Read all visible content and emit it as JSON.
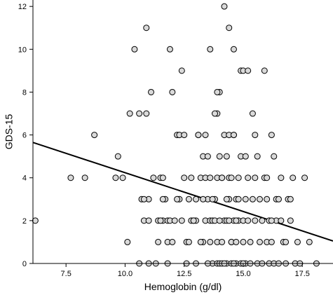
{
  "chart_data": {
    "type": "scatter",
    "xlabel": "Hemoglobin (g/dl)",
    "ylabel": "GDS-15",
    "xlim": [
      6.1,
      18.8
    ],
    "ylim": [
      0,
      12.3
    ],
    "x_ticks": [
      "7.5",
      "10.0",
      "12.5",
      "15.0",
      "17.5"
    ],
    "y_ticks": [
      "0",
      "2",
      "4",
      "6",
      "8",
      "10",
      "12"
    ],
    "grid": false,
    "marker": "open-circle",
    "marker_fill": "#d9d9d9",
    "marker_stroke": "#000000",
    "fit_line": {
      "x": [
        6.1,
        18.8
      ],
      "y": [
        5.65,
        1.05
      ],
      "color": "#000000"
    },
    "points": [
      [
        6.2,
        2
      ],
      [
        7.7,
        4
      ],
      [
        8.3,
        4
      ],
      [
        8.7,
        6
      ],
      [
        9.6,
        4
      ],
      [
        9.7,
        5
      ],
      [
        9.9,
        4
      ],
      [
        10.1,
        1
      ],
      [
        10.2,
        7
      ],
      [
        10.4,
        10
      ],
      [
        10.6,
        7
      ],
      [
        10.7,
        3
      ],
      [
        10.8,
        2
      ],
      [
        10.9,
        7
      ],
      [
        10.9,
        11
      ],
      [
        11.0,
        3
      ],
      [
        11.0,
        0
      ],
      [
        11.1,
        8
      ],
      [
        11.3,
        0
      ],
      [
        11.4,
        2
      ],
      [
        11.5,
        4
      ],
      [
        11.6,
        2
      ],
      [
        11.6,
        4
      ],
      [
        11.7,
        3
      ],
      [
        11.8,
        2
      ],
      [
        11.8,
        1
      ],
      [
        11.9,
        10
      ],
      [
        11.9,
        2
      ],
      [
        12.0,
        8
      ],
      [
        12.1,
        2
      ],
      [
        12.2,
        6
      ],
      [
        12.3,
        3
      ],
      [
        12.3,
        6
      ],
      [
        12.4,
        9
      ],
      [
        12.5,
        6
      ],
      [
        12.6,
        1
      ],
      [
        12.7,
        1
      ],
      [
        12.8,
        2
      ],
      [
        12.9,
        2
      ],
      [
        13.0,
        3
      ],
      [
        13.1,
        6
      ],
      [
        13.1,
        6
      ],
      [
        13.0,
        2
      ],
      [
        13.2,
        4
      ],
      [
        13.3,
        1
      ],
      [
        13.4,
        2
      ],
      [
        13.5,
        3
      ],
      [
        13.6,
        2
      ],
      [
        13.7,
        0
      ],
      [
        13.7,
        2
      ],
      [
        13.8,
        3
      ],
      [
        13.9,
        0
      ],
      [
        13.9,
        4
      ],
      [
        14.0,
        0
      ],
      [
        13.9,
        7
      ],
      [
        14.0,
        8
      ],
      [
        14.1,
        4
      ],
      [
        14.1,
        0
      ],
      [
        14.2,
        2
      ],
      [
        14.2,
        6
      ],
      [
        14.3,
        2
      ],
      [
        14.3,
        0
      ],
      [
        14.4,
        3
      ],
      [
        14.4,
        4
      ],
      [
        14.5,
        1
      ],
      [
        14.5,
        0
      ],
      [
        14.6,
        2
      ],
      [
        14.6,
        6
      ],
      [
        14.7,
        0
      ],
      [
        14.7,
        3
      ],
      [
        14.8,
        2
      ],
      [
        14.8,
        4
      ],
      [
        14.9,
        0
      ],
      [
        14.9,
        5
      ],
      [
        15.0,
        2
      ],
      [
        15.0,
        1
      ],
      [
        15.1,
        3
      ],
      [
        15.1,
        0
      ],
      [
        15.2,
        2
      ],
      [
        15.2,
        4
      ],
      [
        15.3,
        1
      ],
      [
        15.3,
        0
      ],
      [
        15.4,
        7
      ],
      [
        15.4,
        3
      ],
      [
        15.5,
        4
      ],
      [
        15.5,
        2
      ],
      [
        15.6,
        0
      ],
      [
        15.6,
        5
      ],
      [
        15.7,
        1
      ],
      [
        15.7,
        3
      ],
      [
        15.8,
        2
      ],
      [
        15.8,
        0
      ],
      [
        15.9,
        4
      ],
      [
        15.9,
        9
      ],
      [
        16.0,
        3
      ],
      [
        16.0,
        1
      ],
      [
        16.1,
        2
      ],
      [
        16.1,
        0
      ],
      [
        16.2,
        6
      ],
      [
        16.2,
        1
      ],
      [
        16.3,
        5
      ],
      [
        16.3,
        0
      ],
      [
        16.4,
        3
      ],
      [
        16.4,
        2
      ],
      [
        16.5,
        0
      ],
      [
        16.6,
        4
      ],
      [
        16.7,
        1
      ],
      [
        16.8,
        1
      ],
      [
        16.9,
        3
      ],
      [
        17.0,
        2
      ],
      [
        17.1,
        4
      ],
      [
        17.2,
        0
      ],
      [
        17.3,
        1
      ],
      [
        17.4,
        0
      ],
      [
        17.0,
        3
      ],
      [
        16.6,
        2
      ],
      [
        16.8,
        0
      ],
      [
        17.6,
        4
      ],
      [
        17.8,
        1
      ],
      [
        18.1,
        0
      ],
      [
        14.2,
        12
      ],
      [
        14.4,
        11
      ],
      [
        14.6,
        10
      ],
      [
        14.9,
        9
      ],
      [
        15.0,
        9
      ],
      [
        15.2,
        9
      ],
      [
        15.5,
        6
      ],
      [
        16.0,
        4
      ],
      [
        16.2,
        2
      ],
      [
        16.5,
        3
      ],
      [
        13.6,
        10
      ],
      [
        13.8,
        7
      ],
      [
        13.9,
        8
      ],
      [
        14.0,
        5
      ],
      [
        14.1,
        4
      ],
      [
        14.3,
        5
      ],
      [
        14.5,
        1
      ],
      [
        14.7,
        1
      ],
      [
        14.8,
        3
      ],
      [
        15.1,
        5
      ],
      [
        12.7,
        3
      ],
      [
        12.8,
        4
      ],
      [
        12.9,
        2
      ],
      [
        13.0,
        0
      ],
      [
        13.2,
        1
      ],
      [
        13.3,
        3
      ],
      [
        13.4,
        4
      ],
      [
        13.5,
        0
      ],
      [
        13.6,
        1
      ],
      [
        13.7,
        3
      ],
      [
        13.8,
        2
      ],
      [
        13.9,
        1
      ],
      [
        14.0,
        2
      ],
      [
        14.1,
        1
      ],
      [
        14.2,
        0
      ],
      [
        14.3,
        3
      ],
      [
        14.4,
        2
      ],
      [
        14.5,
        4
      ],
      [
        14.6,
        0
      ],
      [
        14.7,
        2
      ],
      [
        12.6,
        0
      ],
      [
        12.5,
        4
      ],
      [
        12.4,
        2
      ],
      [
        12.2,
        3
      ],
      [
        12.0,
        1
      ],
      [
        11.8,
        0
      ],
      [
        11.6,
        3
      ],
      [
        11.5,
        2
      ],
      [
        11.4,
        1
      ],
      [
        11.2,
        4
      ],
      [
        11.0,
        2
      ],
      [
        10.8,
        3
      ],
      [
        10.6,
        0
      ],
      [
        13.3,
        5
      ],
      [
        13.5,
        5
      ],
      [
        13.6,
        4
      ],
      [
        13.4,
        6
      ],
      [
        14.4,
        6
      ],
      [
        14.6,
        6
      ],
      [
        15.0,
        0
      ]
    ]
  }
}
